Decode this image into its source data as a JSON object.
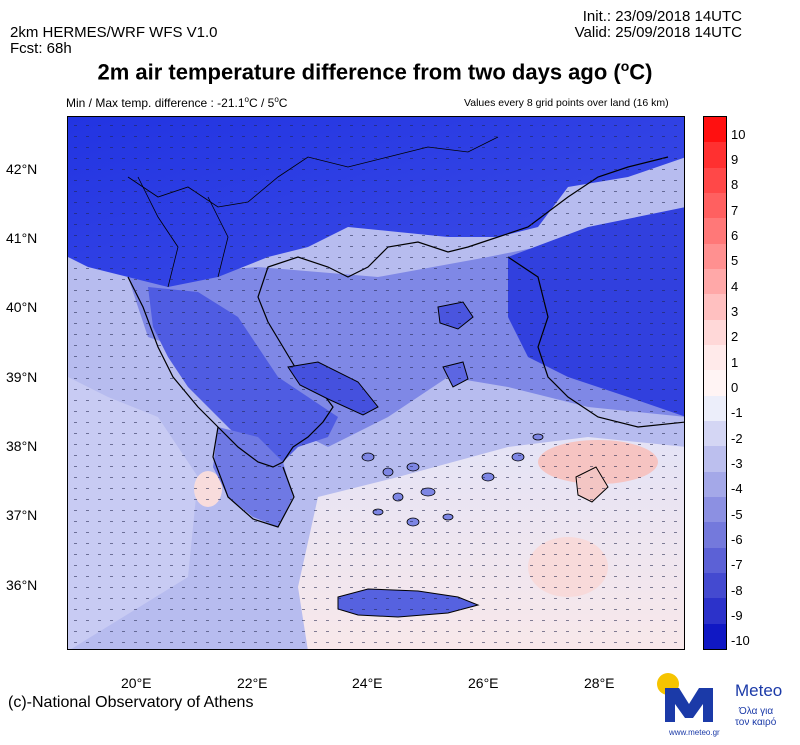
{
  "header": {
    "model": "2km HERMES/WRF WFS V1.0",
    "forecast": "Fcst: 68h",
    "init": "Init.:  23/09/2018 14UTC",
    "valid": "Valid: 25/09/2018 14UTC",
    "title": "2m air temperature difference from two days ago (",
    "title_deg": "o",
    "title_unit": "C)",
    "minmax": "Min / Max temp. difference : -21.1",
    "minmax_deg1": "o",
    "minmax_mid": "C / 5",
    "minmax_deg2": "o",
    "minmax_end": "C",
    "values_note": "Values every 8 grid points over land (16 km)"
  },
  "axes": {
    "lat_labels": [
      "42°N",
      "41°N",
      "40°N",
      "39°N",
      "38°N",
      "37°N",
      "36°N"
    ],
    "lon_labels": [
      "20°E",
      "22°E",
      "24°E",
      "26°E",
      "28°E"
    ]
  },
  "colorbar": {
    "labels": [
      "10",
      "9",
      "8",
      "7",
      "6",
      "5",
      "4",
      "3",
      "2",
      "1",
      "0",
      "-1",
      "-2",
      "-3",
      "-4",
      "-5",
      "-6",
      "-7",
      "-8",
      "-9",
      "-10"
    ],
    "colors": [
      "#ff1010",
      "#ff3030",
      "#ff4848",
      "#ff6060",
      "#ff7878",
      "#ff9090",
      "#ffa8a8",
      "#ffc0c0",
      "#ffd8d8",
      "#ffeaea",
      "#fff4f4",
      "#eceefa",
      "#d4d6f4",
      "#bcbfee",
      "#a4a8e8",
      "#8c90e2",
      "#7479dc",
      "#5c61d6",
      "#444ad0",
      "#2c32ca",
      "#1018c4"
    ]
  },
  "footer": {
    "credit": "(c)-National Observatory of Athens",
    "brand": "Meteo",
    "tagline1": "Όλα για",
    "tagline2": "τον καιρό",
    "url": "www.meteo.gr"
  },
  "palette": {
    "sea_base": "#b8bcef",
    "deep_blue": "#1a2ee0",
    "mid_blue": "#5a68e6",
    "light_blue": "#9aa2ee",
    "pale": "#d9dcf6",
    "pinkish": "#fbe1e1",
    "salmon": "#f7b6b0",
    "land_border": "#000000",
    "logo_yellow": "#f6c400",
    "logo_blue": "#1b3aa8"
  }
}
